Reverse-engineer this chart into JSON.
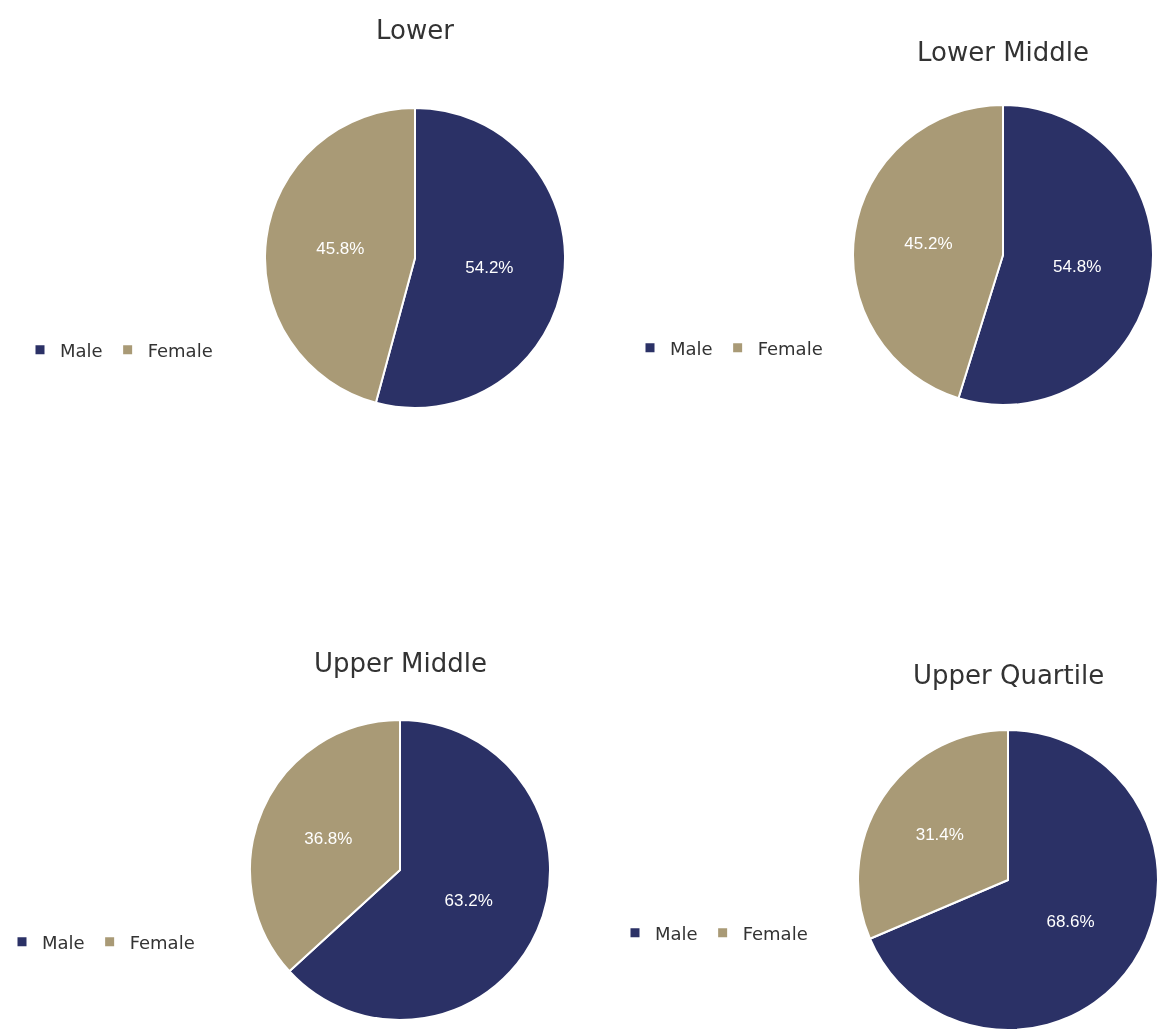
{
  "chart_data": [
    {
      "type": "pie",
      "title": "Lower",
      "categories": [
        "Male",
        "Female"
      ],
      "values": [
        54.2,
        45.8
      ],
      "colors": [
        "#2b3166",
        "#a99a76"
      ],
      "value_labels": [
        "54.2%",
        "45.8%"
      ],
      "legend": "left"
    },
    {
      "type": "pie",
      "title": "Lower Middle",
      "categories": [
        "Male",
        "Female"
      ],
      "values": [
        54.8,
        45.2
      ],
      "colors": [
        "#2b3166",
        "#a99a76"
      ],
      "value_labels": [
        "54.8%",
        "45.2%"
      ],
      "legend": "left"
    },
    {
      "type": "pie",
      "title": "Upper Middle",
      "categories": [
        "Male",
        "Female"
      ],
      "values": [
        63.2,
        36.8
      ],
      "colors": [
        "#2b3166",
        "#a99a76"
      ],
      "value_labels": [
        "63.2%",
        "36.8%"
      ],
      "legend": "left"
    },
    {
      "type": "pie",
      "title": "Upper Quartile",
      "categories": [
        "Male",
        "Female"
      ],
      "values": [
        68.6,
        31.4
      ],
      "colors": [
        "#2b3166",
        "#a99a76"
      ],
      "value_labels": [
        "68.6%",
        "31.4%"
      ],
      "legend": "left"
    }
  ]
}
